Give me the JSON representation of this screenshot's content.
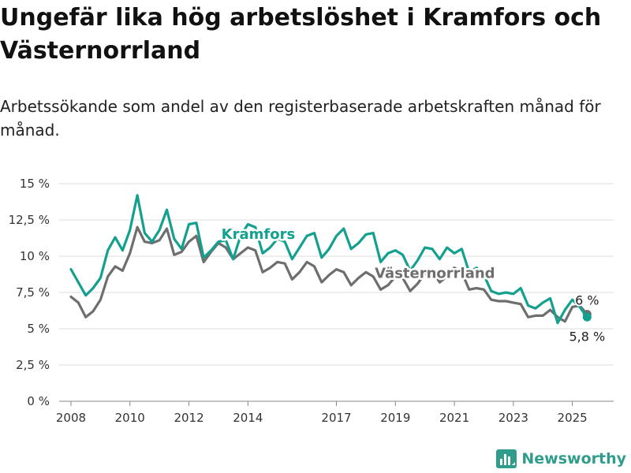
{
  "header": {
    "title": "Ungefär lika hög arbetslöshet i Kramfors och Västernorrland",
    "subtitle": "Arbetssökande som andel av den registerbaserade arbetskraften månad för månad."
  },
  "brand": {
    "name": "Newsworthy",
    "icon": "bar-chart-logo-icon"
  },
  "colors": {
    "kramfors": "#14a08f",
    "vasternorrland": "#6e6e6e",
    "grid": "#dcdcdc",
    "axis": "#888888"
  },
  "chart_data": {
    "type": "line",
    "title": "Ungefär lika hög arbetslöshet i Kramfors och Västernorrland",
    "subtitle": "Arbetssökande som andel av den registerbaserade arbetskraften månad för månad.",
    "y_unit": "%",
    "ylim": [
      0,
      15
    ],
    "xlim": [
      2007.6,
      2026.4
    ],
    "grid": "horizontal",
    "y_ticks": [
      {
        "value": 0,
        "label": "0 %"
      },
      {
        "value": 2.5,
        "label": "2,5 %"
      },
      {
        "value": 5,
        "label": "5 %"
      },
      {
        "value": 7.5,
        "label": "7,5 %"
      },
      {
        "value": 10,
        "label": "10 %"
      },
      {
        "value": 12.5,
        "label": "12,5 %"
      },
      {
        "value": 15,
        "label": "15 %"
      }
    ],
    "x_ticks": [
      {
        "value": 2008,
        "label": "2008"
      },
      {
        "value": 2010,
        "label": "2010"
      },
      {
        "value": 2012,
        "label": "2012"
      },
      {
        "value": 2014,
        "label": "2014"
      },
      {
        "value": 2017,
        "label": "2017"
      },
      {
        "value": 2019,
        "label": "2019"
      },
      {
        "value": 2021,
        "label": "2021"
      },
      {
        "value": 2023,
        "label": "2023"
      },
      {
        "value": 2025,
        "label": "2025"
      }
    ],
    "series": [
      {
        "name": "Västernorrland",
        "x": [
          2008.0,
          2008.25,
          2008.5,
          2008.75,
          2009.0,
          2009.25,
          2009.5,
          2009.75,
          2010.0,
          2010.25,
          2010.5,
          2010.75,
          2011.0,
          2011.25,
          2011.5,
          2011.75,
          2012.0,
          2012.25,
          2012.5,
          2012.75,
          2013.0,
          2013.25,
          2013.5,
          2013.75,
          2014.0,
          2014.25,
          2014.5,
          2014.75,
          2015.0,
          2015.25,
          2015.5,
          2015.75,
          2016.0,
          2016.25,
          2016.5,
          2016.75,
          2017.0,
          2017.25,
          2017.5,
          2017.75,
          2018.0,
          2018.25,
          2018.5,
          2018.75,
          2019.0,
          2019.25,
          2019.5,
          2019.75,
          2020.0,
          2020.25,
          2020.5,
          2020.75,
          2021.0,
          2021.25,
          2021.5,
          2021.75,
          2022.0,
          2022.25,
          2022.5,
          2022.75,
          2023.0,
          2023.25,
          2023.5,
          2023.75,
          2024.0,
          2024.25,
          2024.5,
          2024.75,
          2025.0,
          2025.25,
          2025.5
        ],
        "y": [
          7.2,
          6.8,
          5.8,
          6.2,
          7.0,
          8.6,
          9.3,
          9.0,
          10.2,
          12.0,
          11.0,
          10.9,
          11.1,
          11.9,
          10.1,
          10.3,
          11.0,
          11.4,
          9.6,
          10.3,
          10.9,
          10.6,
          9.8,
          10.2,
          10.6,
          10.4,
          8.9,
          9.2,
          9.6,
          9.5,
          8.4,
          8.9,
          9.6,
          9.3,
          8.2,
          8.7,
          9.1,
          8.9,
          8.0,
          8.5,
          8.9,
          8.6,
          7.7,
          8.0,
          8.6,
          8.5,
          7.6,
          8.1,
          8.8,
          9.0,
          8.2,
          8.6,
          9.2,
          8.9,
          7.7,
          7.8,
          7.7,
          7.0,
          6.9,
          6.9,
          6.8,
          6.7,
          5.8,
          5.9,
          5.9,
          6.3,
          5.8,
          5.5,
          6.5,
          6.6,
          6.0
        ]
      },
      {
        "name": "Kramfors",
        "x": [
          2008.0,
          2008.25,
          2008.5,
          2008.75,
          2009.0,
          2009.25,
          2009.5,
          2009.75,
          2010.0,
          2010.25,
          2010.5,
          2010.75,
          2011.0,
          2011.25,
          2011.5,
          2011.75,
          2012.0,
          2012.25,
          2012.5,
          2012.75,
          2013.0,
          2013.25,
          2013.5,
          2013.75,
          2014.0,
          2014.25,
          2014.5,
          2014.75,
          2015.0,
          2015.25,
          2015.5,
          2015.75,
          2016.0,
          2016.25,
          2016.5,
          2016.75,
          2017.0,
          2017.25,
          2017.5,
          2017.75,
          2018.0,
          2018.25,
          2018.5,
          2018.75,
          2019.0,
          2019.25,
          2019.5,
          2019.75,
          2020.0,
          2020.25,
          2020.5,
          2020.75,
          2021.0,
          2021.25,
          2021.5,
          2021.75,
          2022.0,
          2022.25,
          2022.5,
          2022.75,
          2023.0,
          2023.25,
          2023.5,
          2023.75,
          2024.0,
          2024.25,
          2024.5,
          2024.75,
          2025.0,
          2025.25,
          2025.5
        ],
        "y": [
          9.1,
          8.2,
          7.3,
          7.8,
          8.5,
          10.4,
          11.3,
          10.4,
          11.8,
          14.2,
          11.6,
          11.0,
          11.8,
          13.2,
          11.2,
          10.5,
          12.2,
          12.3,
          9.9,
          10.4,
          11.0,
          11.1,
          9.8,
          11.4,
          12.2,
          12.0,
          10.2,
          10.6,
          11.2,
          11.0,
          9.8,
          10.6,
          11.4,
          11.6,
          9.9,
          10.5,
          11.4,
          11.9,
          10.5,
          10.9,
          11.5,
          11.6,
          9.6,
          10.2,
          10.4,
          10.1,
          9.0,
          9.7,
          10.6,
          10.5,
          9.8,
          10.6,
          10.2,
          10.5,
          8.9,
          9.2,
          8.7,
          7.6,
          7.4,
          7.5,
          7.4,
          7.8,
          6.6,
          6.4,
          6.8,
          7.1,
          5.4,
          6.3,
          7.0,
          6.5,
          5.8
        ]
      }
    ],
    "series_labels": [
      {
        "series": "Kramfors",
        "text": "Kramfors",
        "x": 2013.1,
        "y": 11.2
      },
      {
        "series": "Västernorrland",
        "text": "Västernorrland",
        "x": 2018.3,
        "y": 8.5
      }
    ],
    "end_labels": [
      {
        "series": "Västernorrland",
        "text": "6 %",
        "x": 2025.5,
        "y": 6.0
      },
      {
        "series": "Kramfors",
        "text": "5,8 %",
        "x": 2025.5,
        "y": 5.8
      }
    ]
  }
}
